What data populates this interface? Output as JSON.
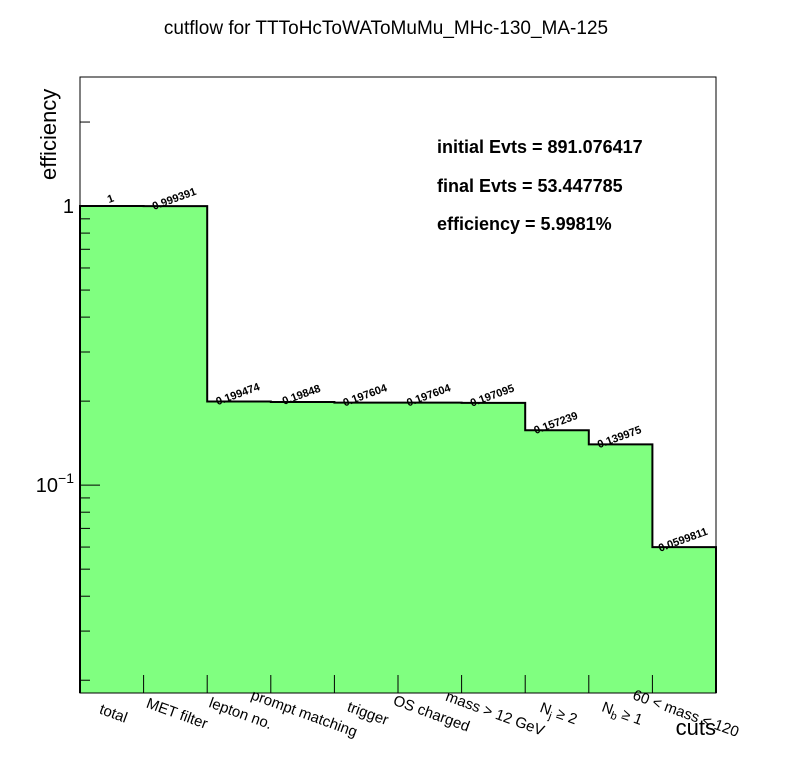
{
  "chart_data": {
    "type": "bar",
    "title": "cutflow for TTToHcToWAToMuMu_MHc-130_MA-125",
    "xlabel": "cuts",
    "ylabel": "efficiency",
    "yscale": "log",
    "ylim": [
      0.018,
      2.9
    ],
    "yticks": [
      {
        "value": 1,
        "label": "1"
      },
      {
        "value": 0.1,
        "label": "10",
        "sup": "−1"
      }
    ],
    "categories": [
      "total",
      "MET filter",
      "lepton no.",
      "prompt matching",
      "trigger",
      "OS charged",
      "mass > 12 GeV",
      "N_j ≥ 2",
      "N_b ≥ 1",
      "60 < mass < 120"
    ],
    "category_parts": [
      {
        "main": "total"
      },
      {
        "main": "MET filter"
      },
      {
        "main": "lepton no."
      },
      {
        "main": "prompt matching"
      },
      {
        "main": "trigger"
      },
      {
        "main": "OS charged"
      },
      {
        "main": "mass > 12 GeV"
      },
      {
        "main": "N",
        "sub": "j",
        "rest": " ≥ 2"
      },
      {
        "main": "N",
        "sub": "b",
        "rest": " ≥ 1"
      },
      {
        "main": "60 < mass < 120"
      }
    ],
    "values": [
      1,
      0.999391,
      0.199474,
      0.19848,
      0.197604,
      0.197604,
      0.197095,
      0.157239,
      0.139975,
      0.0599811
    ],
    "value_labels": [
      "1",
      "0.999391",
      "0.199474",
      "0.19848",
      "0.197604",
      "0.197604",
      "0.197095",
      "0.157239",
      "0.139975",
      "0.0599811"
    ],
    "fill_color": "#80ff80",
    "line_color": "#000000",
    "annotations": [
      "initial Evts = 891.076417",
      "final Evts = 53.447785",
      "efficiency = 5.9981%"
    ],
    "grid": false,
    "legend": "none"
  }
}
